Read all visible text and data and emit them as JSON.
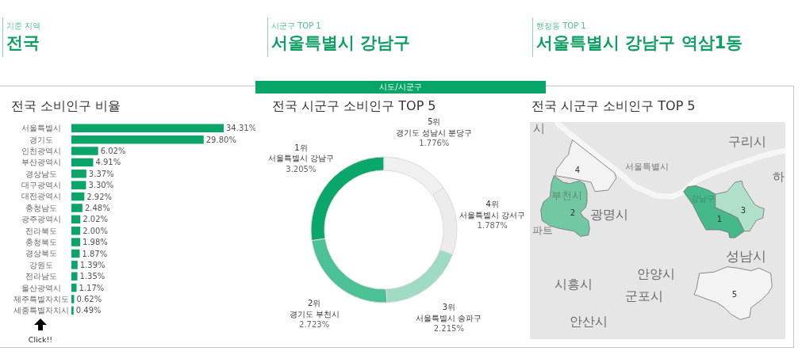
{
  "chart_data": [
    {
      "type": "other",
      "annotations": [
        "기준 지역",
        "전국",
        "시군구 TOP 1",
        "서울특별시 강남구",
        "행정동 TOP 1",
        "서울특별시 강남구 역삼1동",
        "시도/시군구"
      ]
    },
    {
      "type": "bar",
      "orientation": "horizontal",
      "title": "전국 소비인구 비율",
      "categories": [
        "서울특별시",
        "경기도",
        "인천광역시",
        "부산광역시",
        "경상남도",
        "대구광역시",
        "대전광역시",
        "충청남도",
        "광주광역시",
        "전라북도",
        "충청북도",
        "경상북도",
        "강원도",
        "전라남도",
        "울산광역시",
        "제주특별자치도",
        "세종특별자치시"
      ],
      "values": [
        34.31,
        29.8,
        6.02,
        4.91,
        3.37,
        3.3,
        2.92,
        2.48,
        2.02,
        2.0,
        1.98,
        1.87,
        1.39,
        1.35,
        1.17,
        0.62,
        0.49
      ],
      "color": "#0ba469",
      "value_labels": [
        "34.31%",
        "29.80%",
        "6.02%",
        "4.91%",
        "3.37%",
        "3.30%",
        "2.92%",
        "2.48%",
        "2.02%",
        "2.00%",
        "1.98%",
        "1.87%",
        "1.39%",
        "1.35%",
        "1.17%",
        "0.62%",
        "0.49%"
      ],
      "annotations": [
        "Click!!"
      ]
    },
    {
      "type": "donut",
      "title": "전국 시군구 소비인구 TOP 5",
      "categories": [
        "1위\n서울특별시 강남구",
        "2위\n경기도 부천시",
        "3위\n서울특별시 송파구",
        "4위\n서울특별시 강서구",
        "5위\n경기도 성남시 분당구"
      ],
      "values": [
        3.205,
        2.723,
        2.215,
        1.787,
        1.776
      ],
      "colors": [
        "#0aa66a",
        "#4cc196",
        "#9edbc2",
        "#ececec",
        "#f0f0f0"
      ],
      "value_labels": [
        "3.205%",
        "2.723%",
        "2.215%",
        "1.787%",
        "1.776%"
      ]
    },
    {
      "type": "other",
      "title": "전국 시군구 소비인구 TOP 5",
      "annotations": [
        "시",
        "구리시",
        "서울특별시",
        "4",
        "하",
        "부천시",
        "2",
        "광명시",
        "파트",
        "강남구",
        "1",
        "3",
        "성남시",
        "안양시",
        "시흥시",
        "5",
        "군포시",
        "안산시"
      ],
      "colors": [
        "#46b98b",
        "#72c8a2",
        "#b0e0c9",
        "#f3f3f3",
        "#f3f3f3"
      ]
    }
  ]
}
